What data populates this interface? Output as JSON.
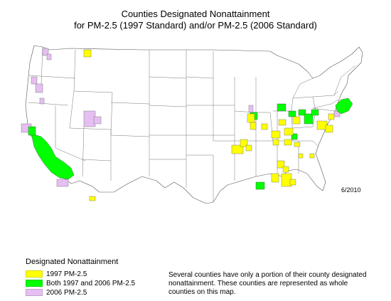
{
  "title_line1": "Counties Designated Nonattainment",
  "title_line2": "for PM-2.5 (1997 Standard) and/or PM-2.5 (2006 Standard)",
  "date": "6/2010",
  "legend": {
    "title": "Designated Nonattainment",
    "items": [
      {
        "label": "1997 PM-2.5",
        "color": "#ffff00"
      },
      {
        "label": "Both 1997 and 2006 PM-2.5",
        "color": "#00ff00"
      },
      {
        "label": "2006 PM-2.5",
        "color": "#e6bff2"
      }
    ]
  },
  "note": "Several counties have only a portion of their county designated nonattainment.  These counties are represented as whole counties on this map.",
  "colors": {
    "pm1997": "#ffff00",
    "both": "#00ff00",
    "pm2006": "#e6bff2",
    "boundary": "#555555"
  }
}
